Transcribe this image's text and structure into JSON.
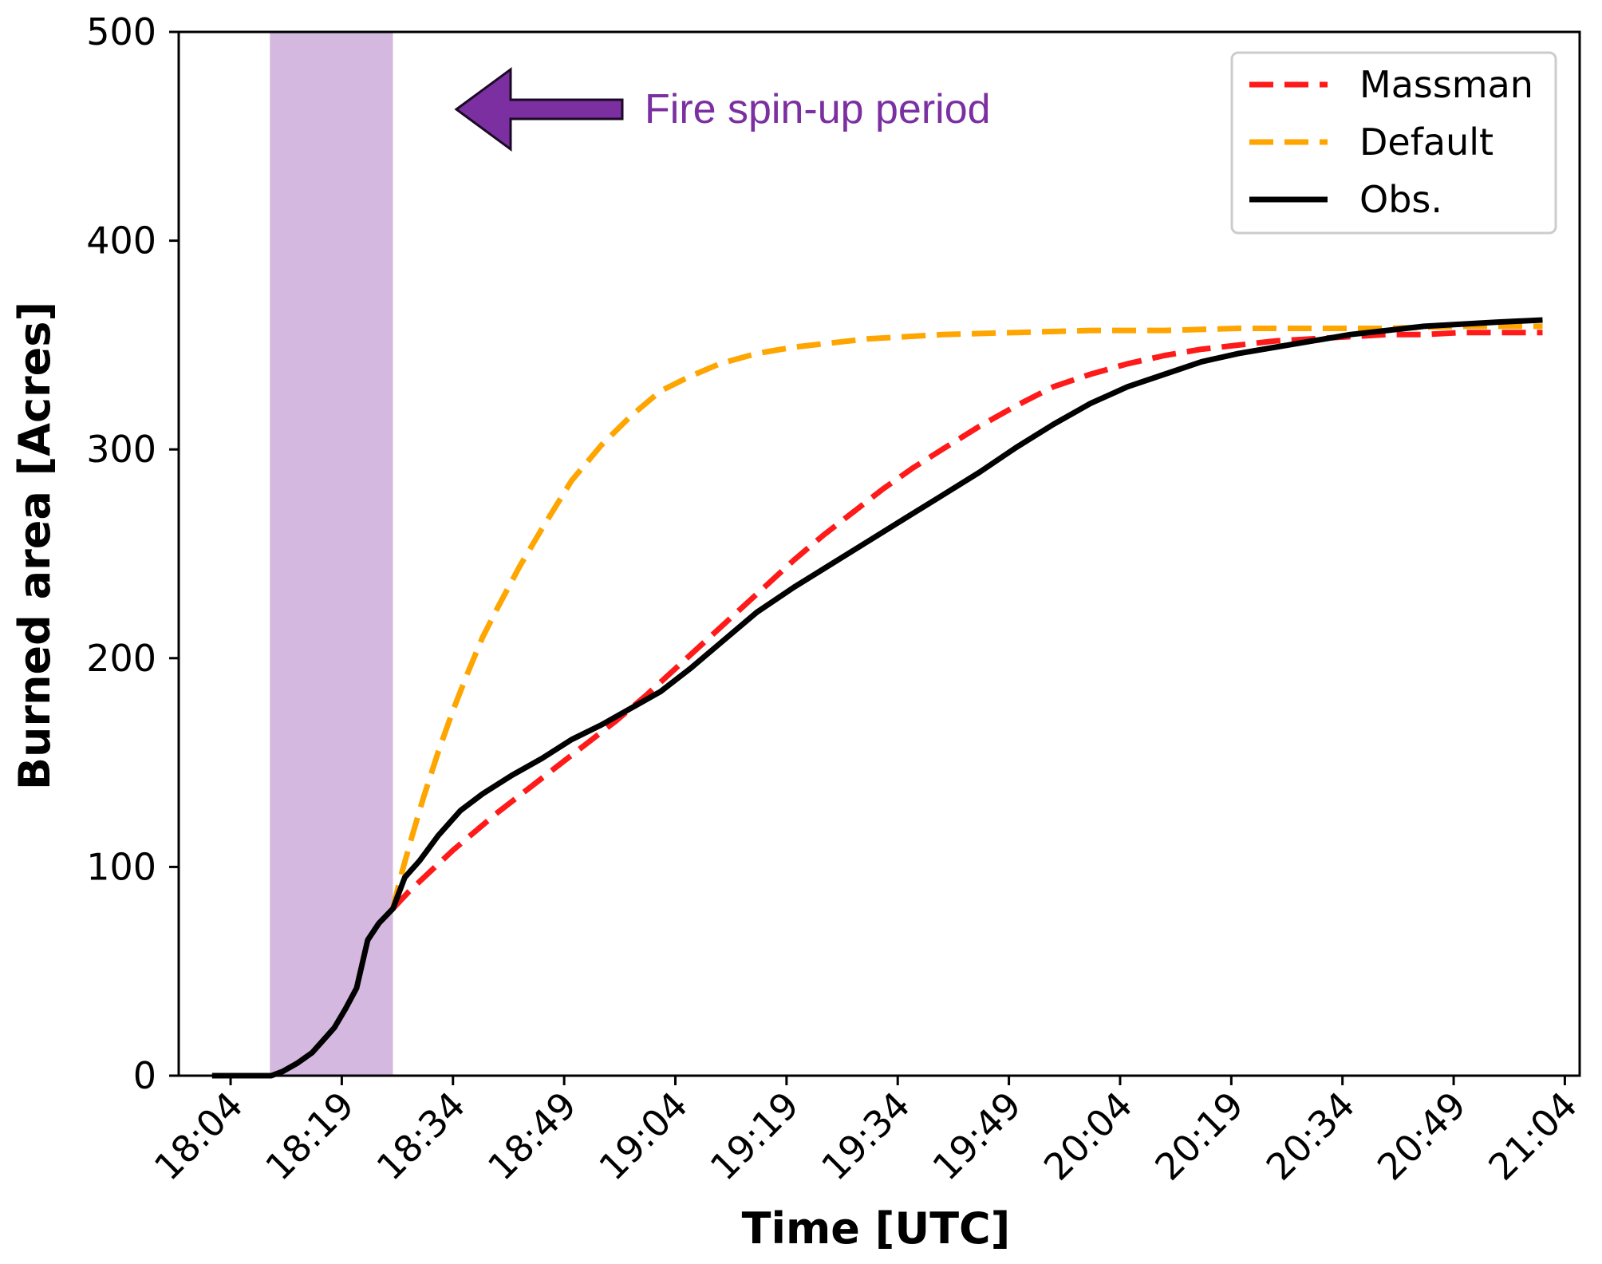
{
  "chart_data": {
    "type": "line",
    "xlabel": "Time [UTC]",
    "ylabel": "Burned area [Acres]",
    "ylim": [
      0,
      500
    ],
    "xlim_minutes": [
      1077,
      1266
    ],
    "x_ticks": [
      {
        "label": "18:04",
        "minutes": 1084
      },
      {
        "label": "18:19",
        "minutes": 1099
      },
      {
        "label": "18:34",
        "minutes": 1114
      },
      {
        "label": "18:49",
        "minutes": 1129
      },
      {
        "label": "19:04",
        "minutes": 1144
      },
      {
        "label": "19:19",
        "minutes": 1159
      },
      {
        "label": "19:34",
        "minutes": 1174
      },
      {
        "label": "19:49",
        "minutes": 1189
      },
      {
        "label": "20:04",
        "minutes": 1204
      },
      {
        "label": "20:19",
        "minutes": 1219
      },
      {
        "label": "20:34",
        "minutes": 1234
      },
      {
        "label": "20:49",
        "minutes": 1249
      },
      {
        "label": "21:04",
        "minutes": 1264
      }
    ],
    "y_ticks": [
      0,
      100,
      200,
      300,
      400,
      500
    ],
    "shaded_region": {
      "x_start_minutes": 1089.3,
      "x_end_minutes": 1105.9,
      "color": "#d4b8e0",
      "label": "Fire spin-up period"
    },
    "annotation": {
      "text": "Fire spin-up period",
      "color": "#7b2fa0",
      "arrow_color": "#7b2fa0"
    },
    "legend": {
      "position": "top-right",
      "entries": [
        {
          "name": "Massman",
          "color": "#ff1a1a",
          "style": "dashed"
        },
        {
          "name": "Default",
          "color": "#ffa500",
          "style": "dashed"
        },
        {
          "name": "Obs.",
          "color": "#000000",
          "style": "solid"
        }
      ]
    },
    "series": [
      {
        "name": "Obs.",
        "color": "#000000",
        "style": "solid",
        "x": [
          1081.5,
          1084,
          1086,
          1088,
          1089.5,
          1091,
          1093,
          1095,
          1096.5,
          1098,
          1099.5,
          1101,
          1102.5,
          1104,
          1105.9,
          1107.5,
          1109.5,
          1112,
          1115,
          1118,
          1122,
          1126,
          1130,
          1134,
          1138,
          1142,
          1146,
          1150,
          1155,
          1160,
          1165,
          1170,
          1175,
          1180,
          1185,
          1190,
          1195,
          1200,
          1205,
          1210,
          1215,
          1220,
          1225,
          1230,
          1235,
          1240,
          1245,
          1250,
          1255,
          1261
        ],
        "y": [
          0,
          0,
          0,
          0,
          0,
          2,
          6,
          11,
          17,
          23,
          32,
          42,
          65,
          73,
          80,
          95,
          103,
          115,
          127,
          135,
          144,
          152,
          161,
          168,
          176,
          184,
          195,
          207,
          222,
          234,
          245,
          256,
          267,
          278,
          289,
          301,
          312,
          322,
          330,
          336,
          342,
          346,
          349,
          352,
          355,
          357,
          359,
          360,
          361,
          362
        ]
      },
      {
        "name": "Massman",
        "color": "#ff1a1a",
        "style": "dashed",
        "x": [
          1105.9,
          1108,
          1111,
          1114,
          1117,
          1120,
          1124,
          1128,
          1132,
          1136,
          1140,
          1144,
          1148,
          1152,
          1156,
          1160,
          1164,
          1168,
          1172,
          1176,
          1180,
          1185,
          1190,
          1195,
          1200,
          1205,
          1210,
          1215,
          1220,
          1225,
          1230,
          1235,
          1240,
          1245,
          1250,
          1255,
          1261
        ],
        "y": [
          80,
          88,
          98,
          108,
          117,
          126,
          137,
          148,
          159,
          170,
          182,
          195,
          208,
          221,
          234,
          247,
          259,
          270,
          281,
          291,
          300,
          311,
          321,
          330,
          336,
          341,
          345,
          348,
          350,
          352,
          353,
          354,
          355,
          355,
          356,
          356,
          356
        ]
      },
      {
        "name": "Default",
        "color": "#ffa500",
        "style": "dashed",
        "x": [
          1105.9,
          1107,
          1108.5,
          1110,
          1112,
          1114,
          1116,
          1118,
          1120,
          1123,
          1126,
          1130,
          1134,
          1138,
          1142,
          1146,
          1150,
          1155,
          1160,
          1165,
          1170,
          1180,
          1190,
          1200,
          1210,
          1220,
          1230,
          1240,
          1250,
          1261
        ],
        "y": [
          80,
          96,
          115,
          133,
          155,
          175,
          193,
          210,
          224,
          244,
          262,
          285,
          302,
          316,
          328,
          335,
          341,
          346,
          349,
          351,
          353,
          355,
          356,
          357,
          357,
          358,
          358,
          358,
          359,
          359
        ]
      }
    ]
  }
}
